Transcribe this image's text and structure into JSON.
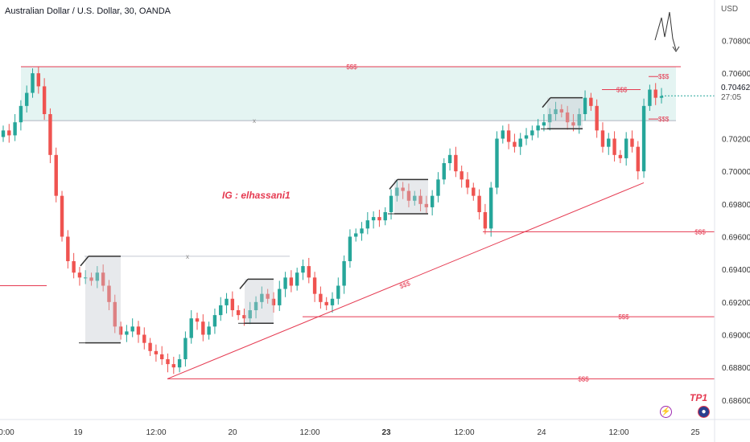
{
  "header": {
    "title": "Australian Dollar / U.S. Dollar, 30, OANDA",
    "currency": "USD"
  },
  "price_badge": {
    "price": "0.70462",
    "countdown": "27:05"
  },
  "watermark": "IG : elhassani1",
  "tp_label": "TP1",
  "icons": {
    "bolt": "lightning-icon",
    "flag": "country-flag-icon"
  },
  "colors": {
    "up": "#26a69a",
    "down": "#ef5350",
    "zone": "#b2dfdb",
    "line": "#e53950",
    "text": "#131722"
  },
  "chart_data": {
    "type": "candlestick",
    "y_ticks": [
      "0.70800",
      "0.70600",
      "0.70200",
      "0.70000",
      "0.69800",
      "0.69600",
      "0.69400",
      "0.69200",
      "0.69000",
      "0.68800",
      "0.68600"
    ],
    "x_ticks": [
      "0:00",
      "19",
      "12:00",
      "20",
      "12:00",
      "23",
      "12:00",
      "24",
      "12:00",
      "25"
    ],
    "ylim": [
      0.6855,
      0.7095
    ],
    "close_path": [
      0.7025,
      0.7022,
      0.703,
      0.704,
      0.7048,
      0.706,
      0.7052,
      0.7035,
      0.701,
      0.6985,
      0.696,
      0.6945,
      0.6938,
      0.6935,
      0.6935,
      0.6933,
      0.6938,
      0.693,
      0.692,
      0.6905,
      0.69,
      0.6902,
      0.6905,
      0.69,
      0.6895,
      0.689,
      0.6888,
      0.6885,
      0.6882,
      0.688,
      0.6885,
      0.6898,
      0.691,
      0.6908,
      0.69,
      0.6905,
      0.6912,
      0.6918,
      0.6922,
      0.6915,
      0.6912,
      0.691,
      0.6915,
      0.692,
      0.6925,
      0.6922,
      0.6918,
      0.6928,
      0.6935,
      0.693,
      0.6938,
      0.6942,
      0.6935,
      0.6925,
      0.692,
      0.6918,
      0.6922,
      0.693,
      0.6945,
      0.696,
      0.6962,
      0.6965,
      0.697,
      0.6972,
      0.697,
      0.6975,
      0.6985,
      0.699,
      0.6988,
      0.6982,
      0.6985,
      0.698,
      0.6978,
      0.6985,
      0.6995,
      0.7005,
      0.701,
      0.7,
      0.6995,
      0.699,
      0.6985,
      0.6975,
      0.6965,
      0.699,
      0.702,
      0.7025,
      0.7018,
      0.7015,
      0.702,
      0.7022,
      0.7025,
      0.7028,
      0.703,
      0.7035,
      0.7038,
      0.7036,
      0.703,
      0.7028,
      0.7035,
      0.7045,
      0.704,
      0.7025,
      0.7015,
      0.702,
      0.701,
      0.7008,
      0.702,
      0.7015,
      0.7,
      0.704,
      0.705,
      0.7045,
      0.7046
    ],
    "levels": [
      {
        "label": "$$$",
        "price": 0.7064,
        "kind": "zone-top"
      },
      {
        "label": "x",
        "price": 0.7031,
        "kind": "zone-bottom"
      },
      {
        "label": "$$$",
        "price": 0.705,
        "kind": "short"
      },
      {
        "label": "$$$",
        "price": 0.7058,
        "kind": "short"
      },
      {
        "label": "$$$",
        "price": 0.7032,
        "kind": "short"
      },
      {
        "label": "$$$",
        "price": 0.6963,
        "kind": "long"
      },
      {
        "label": "x",
        "price": 0.6948,
        "kind": "gray"
      },
      {
        "label": "$$$",
        "price": 0.6911,
        "kind": "long"
      },
      {
        "label": "$$$",
        "price": 0.6873,
        "kind": "long"
      },
      {
        "label": "",
        "price": 0.693,
        "kind": "left-stub"
      }
    ],
    "trendline": {
      "label": "$$$",
      "from_price": 0.6873,
      "to_price": 0.6993
    },
    "boxes": [
      {
        "top": 0.6948,
        "bottom": 0.6895
      },
      {
        "top": 0.6934,
        "bottom": 0.6907
      },
      {
        "top": 0.6995,
        "bottom": 0.6974
      },
      {
        "top": 0.7045,
        "bottom": 0.7026
      }
    ]
  }
}
